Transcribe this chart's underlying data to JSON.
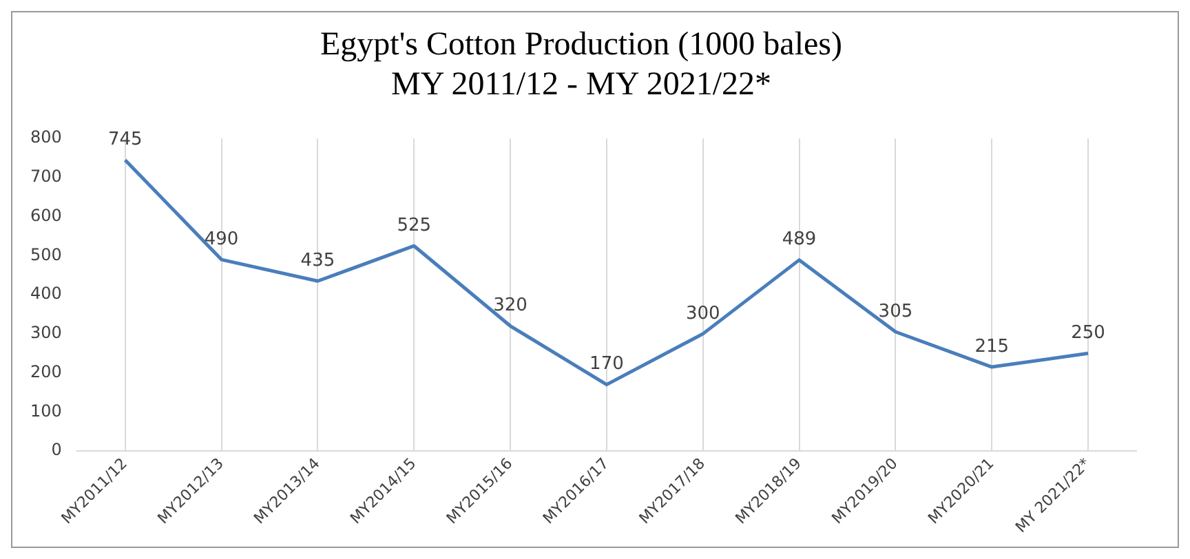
{
  "chart_data": {
    "type": "line",
    "title": "Egypt's Cotton Production (1000 bales)",
    "subtitle": "MY 2011/12 - MY 2021/22*",
    "categories": [
      "MY2011/12",
      "MY2012/13",
      "MY2013/14",
      "MY2014/15",
      "MY2015/16",
      "MY2016/17",
      "MY2017/18",
      "MY2018/19",
      "MY2019/20",
      "MY2020/21",
      "MY 2021/22*"
    ],
    "values": [
      745,
      490,
      435,
      525,
      320,
      170,
      300,
      489,
      305,
      215,
      250
    ],
    "color": "#4a7ebb",
    "ylim": [
      0,
      800
    ],
    "yticks": [
      0,
      100,
      200,
      300,
      400,
      500,
      600,
      700,
      800
    ],
    "grid": "x",
    "data_labels": true,
    "legend": false,
    "marker": "none"
  }
}
